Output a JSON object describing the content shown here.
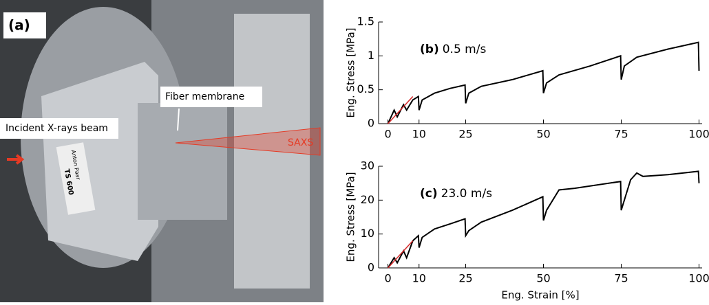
{
  "photo": {
    "panel_label": "(a)",
    "annotations": [
      "Fiber membrane",
      "Incident X-rays beam",
      "SAXS"
    ],
    "device_text": [
      "Anton Paar",
      "TS 600"
    ]
  },
  "chart_data": [
    {
      "type": "line",
      "panel_label": "(b)",
      "annotation": "0.5 m/s",
      "y_label": "Eng. Stress [MPa]",
      "xlim": [
        -3,
        101
      ],
      "xticks": [
        0,
        10,
        25,
        50,
        75,
        100
      ],
      "ylim": [
        0,
        1.5
      ],
      "yticks": [
        0,
        0.5,
        1,
        1.5
      ],
      "series": [
        {
          "color": "#000000",
          "x": [
            0,
            2,
            3,
            5,
            6,
            8,
            9.8,
            10,
            11,
            15,
            20,
            24.8,
            25,
            26,
            30,
            40,
            49.8,
            50,
            51,
            55,
            65,
            74.8,
            75,
            76,
            80,
            90,
            99.8,
            100
          ],
          "values": [
            0,
            0.2,
            0.1,
            0.28,
            0.2,
            0.35,
            0.4,
            0.2,
            0.35,
            0.45,
            0.52,
            0.57,
            0.3,
            0.45,
            0.55,
            0.65,
            0.78,
            0.45,
            0.6,
            0.72,
            0.85,
            1.0,
            0.65,
            0.85,
            0.98,
            1.1,
            1.2,
            0.78
          ]
        },
        {
          "color": "#d62728",
          "x": [
            0,
            8
          ],
          "values": [
            0,
            0.4
          ]
        }
      ]
    },
    {
      "type": "line",
      "panel_label": "(c)",
      "annotation": "23.0 m/s",
      "y_label": "Eng. Stress [MPa]",
      "x_label": "Eng. Strain [%]",
      "xlim": [
        -3,
        101
      ],
      "xticks": [
        0,
        10,
        25,
        50,
        75,
        100
      ],
      "ylim": [
        0,
        30
      ],
      "yticks": [
        0,
        10,
        20,
        30
      ],
      "series": [
        {
          "color": "#000000",
          "x": [
            0,
            2,
            3,
            5,
            6,
            8,
            9.8,
            10,
            11,
            15,
            20,
            24.8,
            25,
            26,
            30,
            40,
            49.8,
            50,
            51,
            55,
            60,
            74.8,
            75,
            76,
            78,
            80,
            82,
            90,
            99.8,
            100
          ],
          "values": [
            0,
            3,
            1.5,
            5,
            3,
            8,
            9.5,
            6,
            9,
            11.5,
            13,
            14.5,
            9.5,
            11,
            13.5,
            17,
            21,
            14,
            17,
            23,
            23.5,
            25.5,
            17,
            20,
            26,
            28,
            27,
            27.5,
            28.5,
            25
          ]
        },
        {
          "color": "#d62728",
          "x": [
            0,
            8
          ],
          "values": [
            0,
            8
          ]
        }
      ]
    }
  ]
}
